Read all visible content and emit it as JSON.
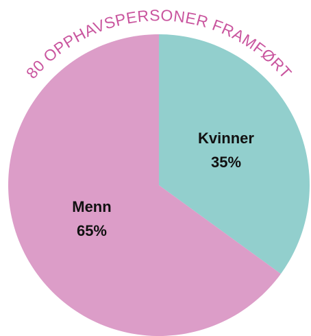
{
  "chart_data": {
    "type": "pie",
    "title": "80 OPPHAVSPERSONER FRAMFØRT",
    "categories": [
      "Kvinner",
      "Menn"
    ],
    "values": [
      35,
      65
    ],
    "value_labels": [
      "35%",
      "65%"
    ],
    "colors": [
      "#92cfcd",
      "#dc9dc8"
    ]
  }
}
